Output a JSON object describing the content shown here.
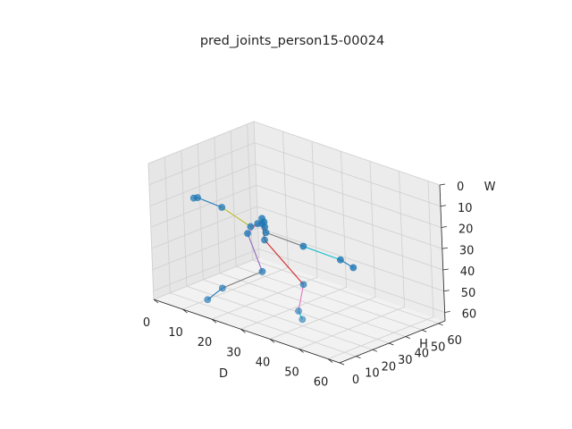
{
  "chart_data": {
    "type": "scatter3d",
    "title": "pred_joints_person15-00024",
    "xlabel": "D",
    "ylabel": "H",
    "zlabel": "W",
    "xlim": [
      0,
      64
    ],
    "ylim": [
      0,
      64
    ],
    "zlim": [
      64,
      0
    ],
    "x_ticks": [
      "0",
      "10",
      "20",
      "30",
      "40",
      "50",
      "60"
    ],
    "y_ticks": [
      "0",
      "10",
      "20",
      "30",
      "40",
      "50",
      "60"
    ],
    "z_ticks": [
      "0",
      "10",
      "20",
      "30",
      "40",
      "50",
      "60"
    ],
    "grid": true,
    "marker_color": "#1f77b4",
    "joints": [
      {
        "id": 0,
        "x": 18.2,
        "y": 35.4,
        "z": 30.8
      },
      {
        "id": 1,
        "x": 18.2,
        "y": 35.4,
        "z": 28.3
      },
      {
        "id": 2,
        "x": 19.3,
        "y": 35.0,
        "z": 31.7
      },
      {
        "id": 3,
        "x": 19.0,
        "y": 35.2,
        "z": 29.6
      },
      {
        "id": 4,
        "x": 15.3,
        "y": 33.4,
        "z": 32.9
      },
      {
        "id": 5,
        "x": 8.1,
        "y": 29.0,
        "z": 25.8
      },
      {
        "id": 6,
        "x": 2.1,
        "y": 25.0,
        "z": 22.8
      },
      {
        "id": 7,
        "x": 1.1,
        "y": 24.4,
        "z": 23.3
      },
      {
        "id": 8,
        "x": 20.5,
        "y": 33.5,
        "z": 33.3
      },
      {
        "id": 9,
        "x": 31.6,
        "y": 36.5,
        "z": 35.5
      },
      {
        "id": 10,
        "x": 43.1,
        "y": 38.7,
        "z": 37.2
      },
      {
        "id": 11,
        "x": 47.3,
        "y": 39.0,
        "z": 39.0
      },
      {
        "id": 12,
        "x": 17.1,
        "y": 34.6,
        "z": 31.0
      },
      {
        "id": 13,
        "x": 14.8,
        "y": 32.3,
        "z": 36.0
      },
      {
        "id": 14,
        "x": 23.2,
        "y": 25.8,
        "z": 48.0
      },
      {
        "id": 15,
        "x": 14.5,
        "y": 16.5,
        "z": 57.0
      },
      {
        "id": 16,
        "x": 10.8,
        "y": 13.7,
        "z": 63.3
      },
      {
        "id": 17,
        "x": 22.1,
        "y": 29.8,
        "z": 34.9
      },
      {
        "id": 18,
        "x": 39.6,
        "y": 22.0,
        "z": 45.3
      },
      {
        "id": 19,
        "x": 46.1,
        "y": 7.3,
        "z": 50.2
      },
      {
        "id": 20,
        "x": 48.8,
        "y": 4.8,
        "z": 52.1
      }
    ],
    "bones": [
      {
        "a": 7,
        "b": 6,
        "color": "#1f77b4"
      },
      {
        "a": 6,
        "b": 5,
        "color": "#1f77b4"
      },
      {
        "a": 5,
        "b": 4,
        "color": "#bcbd22"
      },
      {
        "a": 4,
        "b": 3,
        "color": "#7f7f7f"
      },
      {
        "a": 3,
        "b": 1,
        "color": "#2ca02c"
      },
      {
        "a": 1,
        "b": 0,
        "color": "#17becf"
      },
      {
        "a": 0,
        "b": 2,
        "color": "#1f77b4"
      },
      {
        "a": 2,
        "b": 8,
        "color": "#d62728"
      },
      {
        "a": 8,
        "b": 9,
        "color": "#7f7f7f"
      },
      {
        "a": 9,
        "b": 10,
        "color": "#17becf"
      },
      {
        "a": 10,
        "b": 11,
        "color": "#1f77b4"
      },
      {
        "a": 0,
        "b": 12,
        "color": "#9467bd"
      },
      {
        "a": 12,
        "b": 13,
        "color": "#e377c2"
      },
      {
        "a": 13,
        "b": 14,
        "color": "#9467bd"
      },
      {
        "a": 14,
        "b": 15,
        "color": "#7f7f7f"
      },
      {
        "a": 15,
        "b": 16,
        "color": "#1f77b4"
      },
      {
        "a": 0,
        "b": 17,
        "color": "#8c564b"
      },
      {
        "a": 17,
        "b": 18,
        "color": "#d62728"
      },
      {
        "a": 18,
        "b": 19,
        "color": "#e377c2"
      },
      {
        "a": 19,
        "b": 20,
        "color": "#17becf"
      }
    ]
  }
}
